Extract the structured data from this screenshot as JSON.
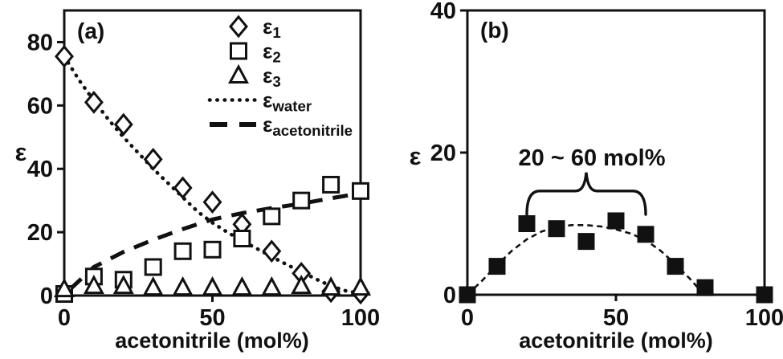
{
  "figure": {
    "background": "#ffffff",
    "ink_color": "#111111"
  },
  "chart_data": [
    {
      "id": "a",
      "type": "scatter",
      "panel_label": "(a)",
      "xlabel": "acetonitrile (mol%)",
      "ylabel": "ε",
      "xlim": [
        0,
        100
      ],
      "ylim": [
        0,
        90
      ],
      "xticks": [
        0,
        50,
        100
      ],
      "yticks": [
        0,
        20,
        40,
        60,
        80
      ],
      "grid": false,
      "legend_position": "inside-top-right",
      "series": [
        {
          "name": "epsilon-1",
          "label": {
            "base": "ε",
            "sub": "1"
          },
          "kind": "points",
          "marker": "diamond",
          "fill": "open",
          "points": [
            [
              0,
              75.5
            ],
            [
              10,
              61
            ],
            [
              20,
              54
            ],
            [
              30,
              43
            ],
            [
              40,
              34
            ],
            [
              50,
              29.5
            ],
            [
              60,
              22.5
            ],
            [
              70,
              14
            ],
            [
              80,
              7
            ],
            [
              90,
              1.3
            ],
            [
              100,
              0.8
            ]
          ]
        },
        {
          "name": "epsilon-2",
          "label": {
            "base": "ε",
            "sub": "2"
          },
          "kind": "points",
          "marker": "square",
          "fill": "open",
          "points": [
            [
              0,
              0.5
            ],
            [
              10,
              6
            ],
            [
              20,
              5
            ],
            [
              30,
              9
            ],
            [
              40,
              14
            ],
            [
              50,
              14.5
            ],
            [
              60,
              18
            ],
            [
              70,
              25
            ],
            [
              80,
              30
            ],
            [
              90,
              35
            ],
            [
              100,
              33
            ]
          ]
        },
        {
          "name": "epsilon-3",
          "label": {
            "base": "ε",
            "sub": "3"
          },
          "kind": "points",
          "marker": "triangle",
          "fill": "open",
          "points": [
            [
              0,
              2
            ],
            [
              10,
              3
            ],
            [
              20,
              3
            ],
            [
              30,
              2.5
            ],
            [
              40,
              2.5
            ],
            [
              50,
              2.5
            ],
            [
              60,
              2.5
            ],
            [
              70,
              2.5
            ],
            [
              80,
              3
            ],
            [
              90,
              2.5
            ],
            [
              100,
              2.5
            ]
          ]
        },
        {
          "name": "epsilon-water",
          "label": {
            "base": "ε",
            "sub": "water"
          },
          "kind": "curve",
          "style": "dotted",
          "points": [
            [
              0,
              75.5
            ],
            [
              5,
              68
            ],
            [
              10,
              61.5
            ],
            [
              15,
              55.5
            ],
            [
              20,
              50
            ],
            [
              25,
              45
            ],
            [
              30,
              40
            ],
            [
              35,
              35.5
            ],
            [
              40,
              31
            ],
            [
              45,
              26.5
            ],
            [
              50,
              23
            ],
            [
              55,
              20
            ],
            [
              60,
              17.3
            ],
            [
              65,
              14.8
            ],
            [
              70,
              12.3
            ],
            [
              75,
              9.8
            ],
            [
              80,
              7.5
            ],
            [
              85,
              5.2
            ],
            [
              90,
              3
            ],
            [
              95,
              1.5
            ],
            [
              100,
              0.7
            ]
          ]
        },
        {
          "name": "epsilon-acetonitrile",
          "label": {
            "base": "ε",
            "sub": "acetonitrile"
          },
          "kind": "curve",
          "style": "dashed",
          "points": [
            [
              2,
              2
            ],
            [
              10,
              9
            ],
            [
              20,
              13.8
            ],
            [
              30,
              17.6
            ],
            [
              40,
              21
            ],
            [
              50,
              24
            ],
            [
              60,
              26
            ],
            [
              70,
              27.6
            ],
            [
              80,
              29
            ],
            [
              90,
              30.7
            ],
            [
              100,
              32.3
            ]
          ]
        }
      ]
    },
    {
      "id": "b",
      "type": "scatter",
      "panel_label": "(b)",
      "xlabel": "acetonitrile (mol%)",
      "ylabel": "ε",
      "xlim": [
        0,
        100
      ],
      "ylim": [
        0,
        40
      ],
      "xticks": [
        0,
        50,
        100
      ],
      "yticks": [
        0,
        20,
        40
      ],
      "grid": false,
      "series": [
        {
          "name": "epsilon-mix-fit",
          "kind": "curve",
          "style": "short-dash",
          "points": [
            [
              0,
              0
            ],
            [
              5,
              2
            ],
            [
              10,
              4.2
            ],
            [
              15,
              6.2
            ],
            [
              20,
              7.8
            ],
            [
              25,
              8.9
            ],
            [
              30,
              9.5
            ],
            [
              35,
              9.8
            ],
            [
              40,
              9.8
            ],
            [
              45,
              9.6
            ],
            [
              50,
              9.2
            ],
            [
              55,
              8.6
            ],
            [
              60,
              7.7
            ],
            [
              65,
              6.2
            ],
            [
              70,
              4.3
            ],
            [
              75,
              2.2
            ],
            [
              79,
              0.3
            ]
          ]
        },
        {
          "name": "epsilon-mix",
          "kind": "points",
          "marker": "square",
          "fill": "solid",
          "points": [
            [
              0,
              0
            ],
            [
              10,
              4
            ],
            [
              20,
              10
            ],
            [
              30,
              9.3
            ],
            [
              40,
              7.5
            ],
            [
              50,
              10.4
            ],
            [
              60,
              8.5
            ],
            [
              70,
              4
            ],
            [
              80,
              1
            ],
            [
              100,
              0
            ]
          ]
        }
      ],
      "annotation": {
        "text": "20 ~ 60 mol%",
        "x_from": 20,
        "x_to": 60,
        "bar_y": 14.6,
        "end_y": 11.3,
        "peak_y": 17.2,
        "text_x": 42,
        "text_y": 18.2
      }
    }
  ]
}
